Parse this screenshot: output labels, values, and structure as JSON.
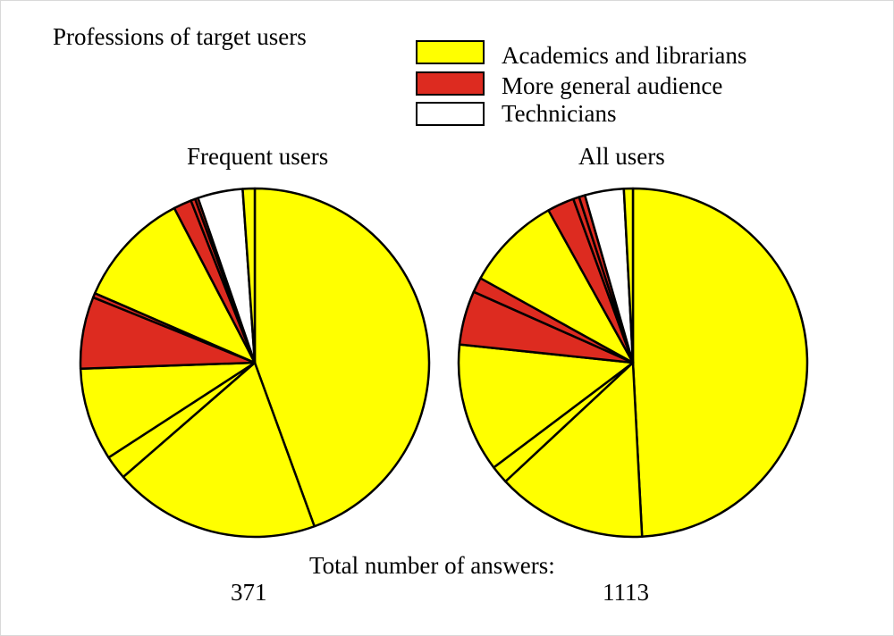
{
  "title": "Professions of target users",
  "legend": [
    {
      "label": "Academics and librarians",
      "color": "#ffff00"
    },
    {
      "label": "More general audience",
      "color": "#dd2b20"
    },
    {
      "label": "Technicians",
      "color": "#ffffff"
    }
  ],
  "totals_label": "Total number of answers:",
  "chart_data": [
    {
      "type": "pie",
      "title": "Frequent users",
      "total": "371",
      "slice_groups": [
        "Academics and librarians",
        "Academics and librarians",
        "Academics and librarians",
        "Academics and librarians",
        "More general audience",
        "More general audience",
        "Academics and librarians",
        "More general audience",
        "More general audience",
        "More general audience",
        "Technicians",
        "Academics and librarians"
      ],
      "values_degrees": [
        160.0,
        69.0,
        8.0,
        31.0,
        24.0,
        1.5,
        39.0,
        6.0,
        1.5,
        1.0,
        15.0,
        4.0
      ]
    },
    {
      "type": "pie",
      "title": "All users",
      "total": "1113",
      "slice_groups": [
        "Academics and librarians",
        "Academics and librarians",
        "Academics and librarians",
        "Academics and librarians",
        "More general audience",
        "More general audience",
        "Academics and librarians",
        "More general audience",
        "More general audience",
        "More general audience",
        "Technicians",
        "Academics and librarians"
      ],
      "values_degrees": [
        177.0,
        50.0,
        6.0,
        43.0,
        18.0,
        5.0,
        32.0,
        9.0,
        2.0,
        2.0,
        13.0,
        3.0
      ]
    }
  ]
}
